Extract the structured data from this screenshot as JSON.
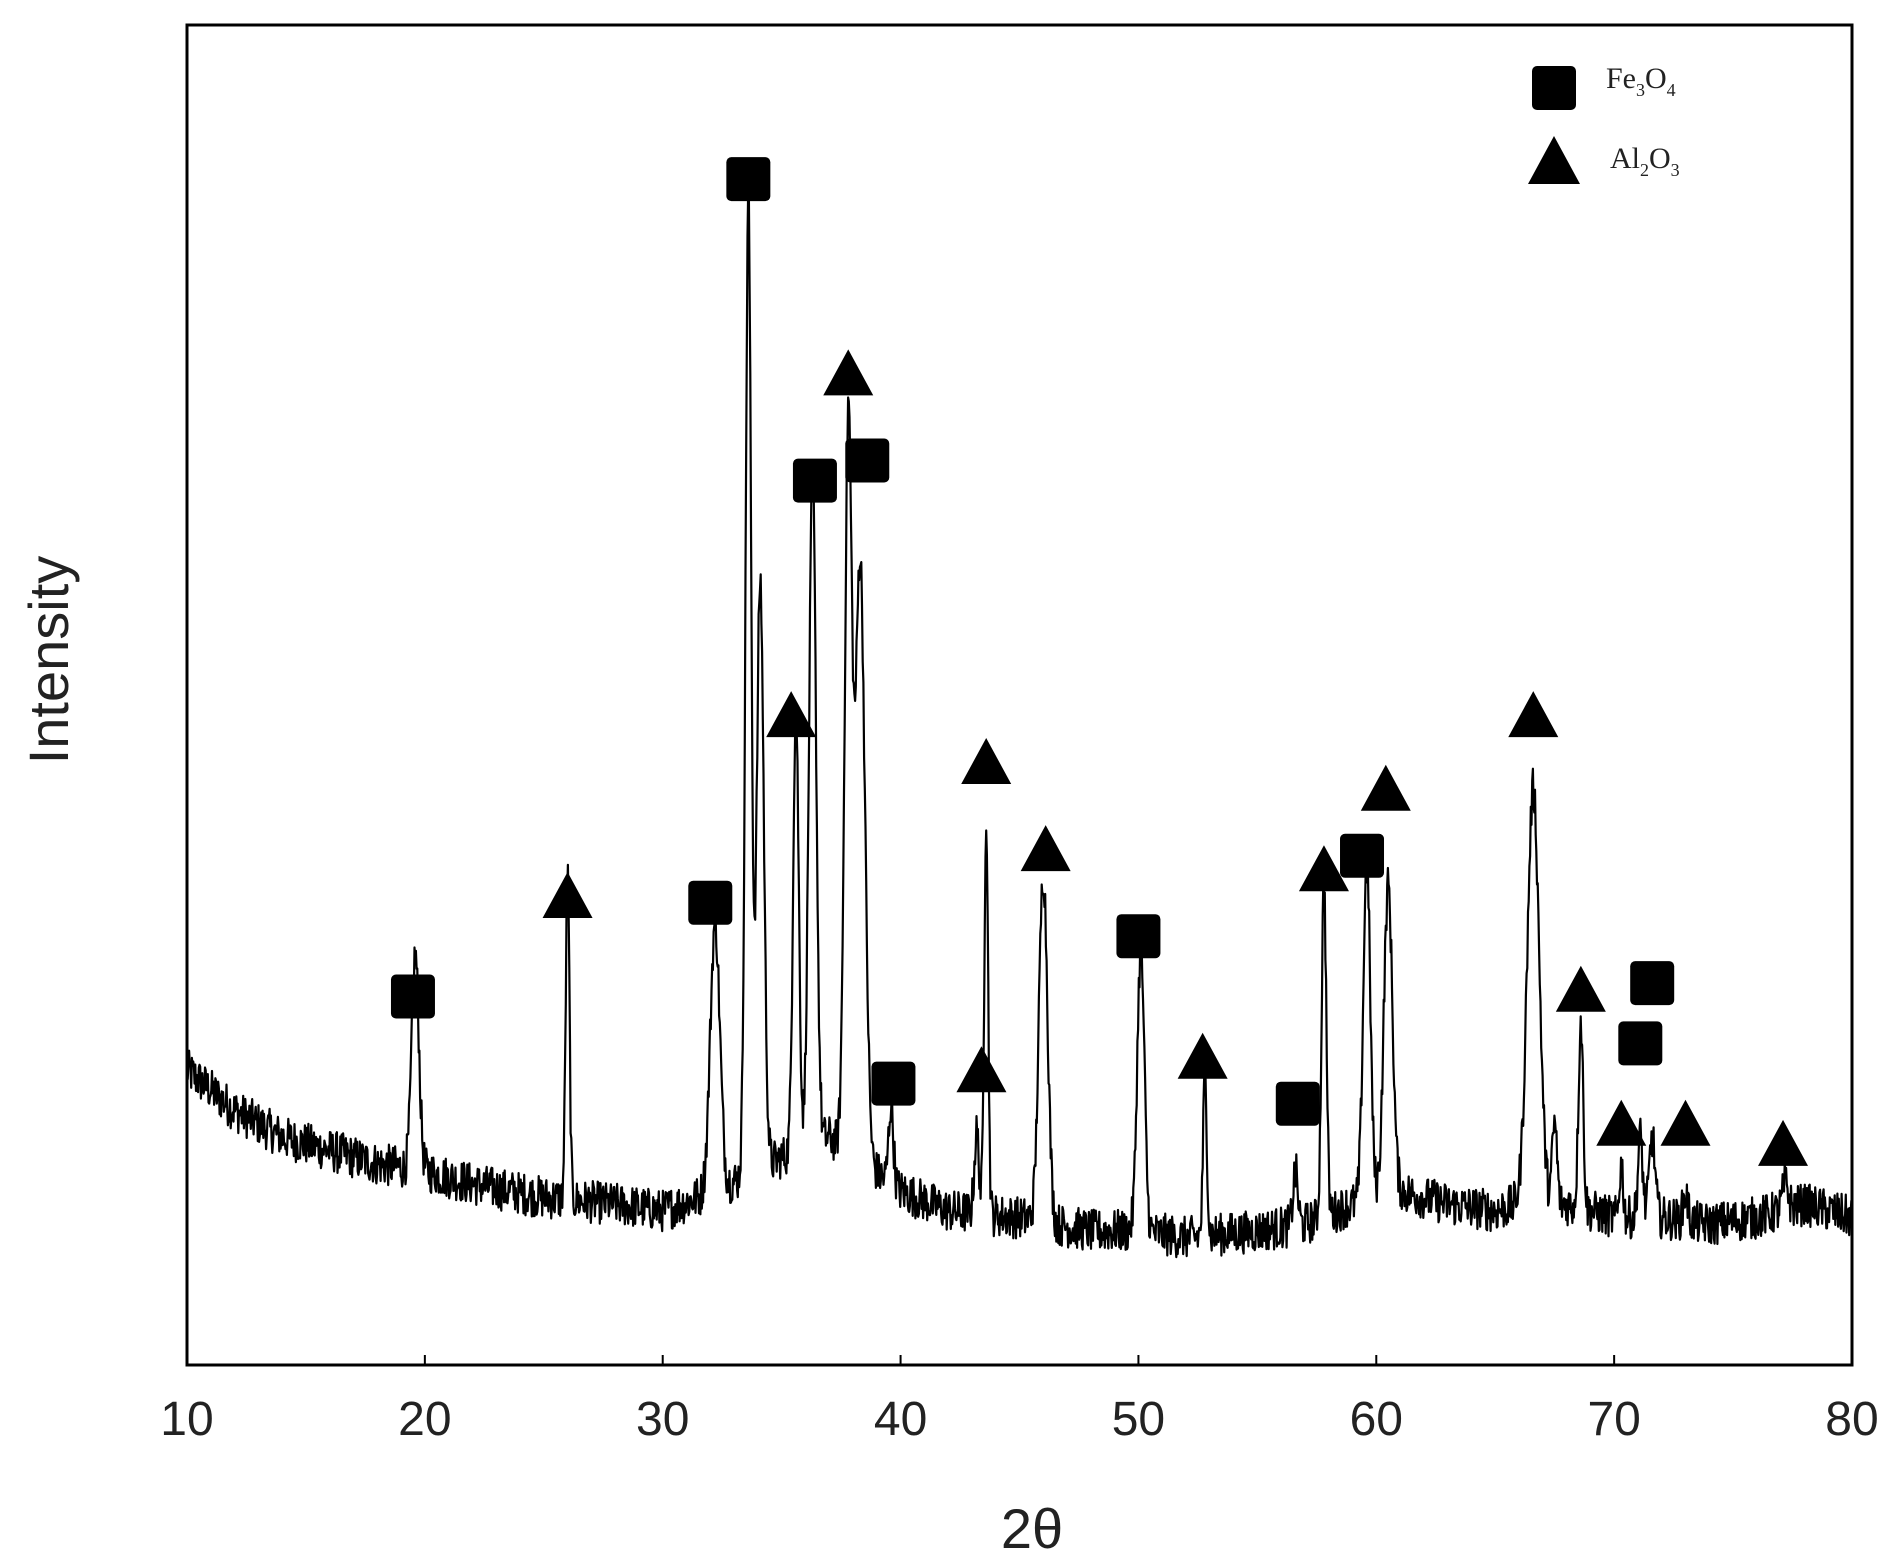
{
  "chart_data": {
    "type": "line",
    "xlabel": "2θ",
    "ylabel": "Intensity",
    "xlim": [
      10,
      80
    ],
    "ylim": [
      0,
      100
    ],
    "x_ticks": [
      "10",
      "20",
      "30",
      "40",
      "50",
      "60",
      "70",
      "80"
    ],
    "y_ticks": [],
    "grid": false,
    "legend_position": "top-right",
    "legend": [
      {
        "marker": "square",
        "label": "Fe",
        "sub1": "3",
        "label2": "O",
        "sub2": "4"
      },
      {
        "marker": "triangle",
        "label": "Al",
        "sub1": "2",
        "label2": "O",
        "sub2": "3"
      }
    ],
    "series": [
      {
        "color": "#000000",
        "baseline": [
          [
            10,
            22
          ],
          [
            12,
            19
          ],
          [
            14,
            17
          ],
          [
            16,
            16
          ],
          [
            18,
            15
          ],
          [
            20,
            14.5
          ],
          [
            22,
            13.5
          ],
          [
            25,
            12.5
          ],
          [
            28,
            12
          ],
          [
            30,
            11.5
          ],
          [
            31.5,
            12.5
          ],
          [
            34,
            14.5
          ],
          [
            35,
            15.5
          ],
          [
            37,
            17
          ],
          [
            38.5,
            15
          ],
          [
            40,
            13
          ],
          [
            42,
            11.5
          ],
          [
            45,
            11
          ],
          [
            48,
            10
          ],
          [
            50,
            10
          ],
          [
            52,
            9.5
          ],
          [
            55,
            10
          ],
          [
            57,
            10.5
          ],
          [
            59,
            12
          ],
          [
            61,
            13
          ],
          [
            63,
            12
          ],
          [
            65,
            11.5
          ],
          [
            66,
            12
          ],
          [
            68,
            12
          ],
          [
            70,
            11
          ],
          [
            72,
            11
          ],
          [
            74,
            10.5
          ],
          [
            76,
            11
          ],
          [
            78,
            12
          ],
          [
            80,
            11
          ]
        ],
        "peaks": [
          {
            "x": 19.6,
            "h": 16,
            "w": 0.15,
            "phase": "Fe3O4"
          },
          {
            "x": 26.0,
            "h": 24,
            "w": 0.08,
            "phase": "Al2O3"
          },
          {
            "x": 32.2,
            "h": 20,
            "w": 0.2,
            "phase": "Fe3O4"
          },
          {
            "x": 33.6,
            "h": 73,
            "w": 0.12,
            "phase": "Fe3O4"
          },
          {
            "x": 34.1,
            "h": 44,
            "w": 0.15,
            "phase": ""
          },
          {
            "x": 35.6,
            "h": 33,
            "w": 0.12,
            "phase": "Al2O3"
          },
          {
            "x": 36.3,
            "h": 50,
            "w": 0.15,
            "phase": "Fe3O4"
          },
          {
            "x": 37.8,
            "h": 54,
            "w": 0.15,
            "phase": "Al2O3"
          },
          {
            "x": 38.3,
            "h": 45,
            "w": 0.2,
            "phase": "Fe3O4"
          },
          {
            "x": 39.6,
            "h": 6,
            "w": 0.1,
            "phase": "Fe3O4"
          },
          {
            "x": 43.2,
            "h": 6,
            "w": 0.1,
            "phase": "Al2O3"
          },
          {
            "x": 43.6,
            "h": 30,
            "w": 0.08,
            "phase": "Al2O3"
          },
          {
            "x": 46.0,
            "h": 26,
            "w": 0.18,
            "phase": "Al2O3"
          },
          {
            "x": 50.1,
            "h": 21,
            "w": 0.15,
            "phase": "Fe3O4"
          },
          {
            "x": 52.8,
            "h": 12,
            "w": 0.08,
            "phase": "Al2O3"
          },
          {
            "x": 56.6,
            "h": 4,
            "w": 0.1,
            "phase": "Fe3O4"
          },
          {
            "x": 57.8,
            "h": 25,
            "w": 0.1,
            "phase": "Al2O3"
          },
          {
            "x": 59.6,
            "h": 25,
            "w": 0.15,
            "phase": "Fe3O4"
          },
          {
            "x": 60.5,
            "h": 23,
            "w": 0.18,
            "phase": "Al2O3"
          },
          {
            "x": 66.6,
            "h": 31,
            "w": 0.25,
            "phase": "Al2O3"
          },
          {
            "x": 67.5,
            "h": 6,
            "w": 0.1,
            "phase": ""
          },
          {
            "x": 68.6,
            "h": 14,
            "w": 0.1,
            "phase": "Al2O3"
          },
          {
            "x": 70.3,
            "h": 4,
            "w": 0.08,
            "phase": "Al2O3"
          },
          {
            "x": 71.1,
            "h": 6,
            "w": 0.1,
            "phase": "Fe3O4"
          },
          {
            "x": 71.6,
            "h": 6,
            "w": 0.12,
            "phase": "Fe3O4"
          },
          {
            "x": 73.0,
            "h": 2,
            "w": 0.1,
            "phase": "Al2O3"
          },
          {
            "x": 77.2,
            "h": 2,
            "w": 0.12,
            "phase": "Al2O3"
          }
        ]
      }
    ],
    "markers": [
      {
        "type": "square",
        "x": 19.5,
        "y": 27.5
      },
      {
        "type": "triangle",
        "x": 26.0,
        "y": 35
      },
      {
        "type": "square",
        "x": 32.0,
        "y": 34.5
      },
      {
        "type": "square",
        "x": 33.6,
        "y": 88.5
      },
      {
        "type": "triangle",
        "x": 35.4,
        "y": 48.5
      },
      {
        "type": "square",
        "x": 36.4,
        "y": 66
      },
      {
        "type": "triangle",
        "x": 37.8,
        "y": 74
      },
      {
        "type": "square",
        "x": 38.6,
        "y": 67.5
      },
      {
        "type": "square",
        "x": 39.7,
        "y": 21
      },
      {
        "type": "triangle",
        "x": 43.4,
        "y": 22
      },
      {
        "type": "triangle",
        "x": 43.6,
        "y": 45
      },
      {
        "type": "triangle",
        "x": 46.1,
        "y": 38.5
      },
      {
        "type": "square",
        "x": 50.0,
        "y": 32
      },
      {
        "type": "triangle",
        "x": 52.7,
        "y": 23
      },
      {
        "type": "square",
        "x": 56.7,
        "y": 19.5
      },
      {
        "type": "triangle",
        "x": 57.8,
        "y": 37
      },
      {
        "type": "square",
        "x": 59.4,
        "y": 38
      },
      {
        "type": "triangle",
        "x": 60.4,
        "y": 43
      },
      {
        "type": "triangle",
        "x": 66.6,
        "y": 48.5
      },
      {
        "type": "triangle",
        "x": 68.6,
        "y": 28
      },
      {
        "type": "triangle",
        "x": 70.3,
        "y": 18
      },
      {
        "type": "square",
        "x": 71.1,
        "y": 24
      },
      {
        "type": "square",
        "x": 71.6,
        "y": 28.5
      },
      {
        "type": "triangle",
        "x": 73.0,
        "y": 18
      },
      {
        "type": "triangle",
        "x": 77.1,
        "y": 16.5
      }
    ]
  }
}
